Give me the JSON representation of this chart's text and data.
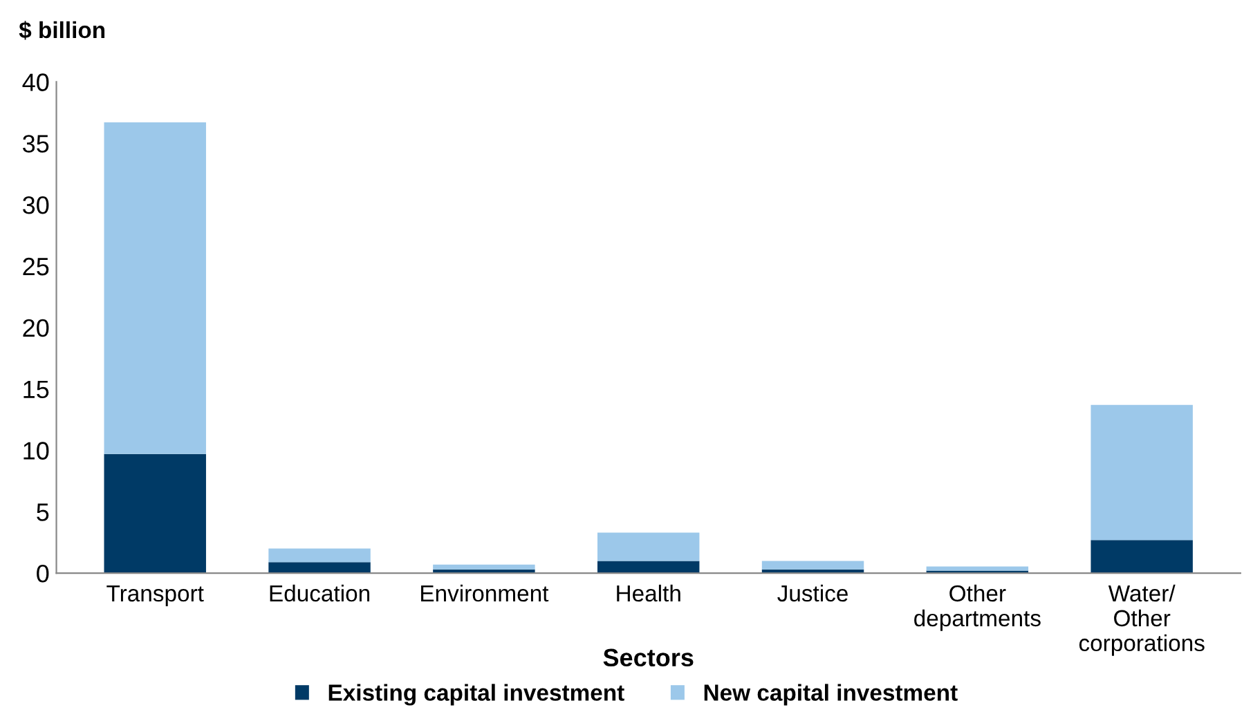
{
  "chart_data": {
    "type": "bar",
    "stacked": true,
    "ylabel": "$ billion",
    "xlabel": "Sectors",
    "categories": [
      "Transport",
      "Education",
      "Environment",
      "Health",
      "Justice",
      "Other\ndepartments",
      "Water/\nOther\ncorporations"
    ],
    "series": [
      {
        "name": "Existing capital investment",
        "color": "#003a66",
        "values": [
          9.7,
          0.9,
          0.3,
          1.0,
          0.3,
          0.2,
          2.7
        ]
      },
      {
        "name": "New capital investment",
        "color": "#9cc8ea",
        "values": [
          27.0,
          1.1,
          0.4,
          2.3,
          0.7,
          0.35,
          11.0
        ]
      }
    ],
    "ylim": [
      0,
      40
    ],
    "yticks": [
      0,
      5,
      10,
      15,
      20,
      25,
      30,
      35,
      40
    ],
    "grid": false,
    "legend": "bottom"
  }
}
